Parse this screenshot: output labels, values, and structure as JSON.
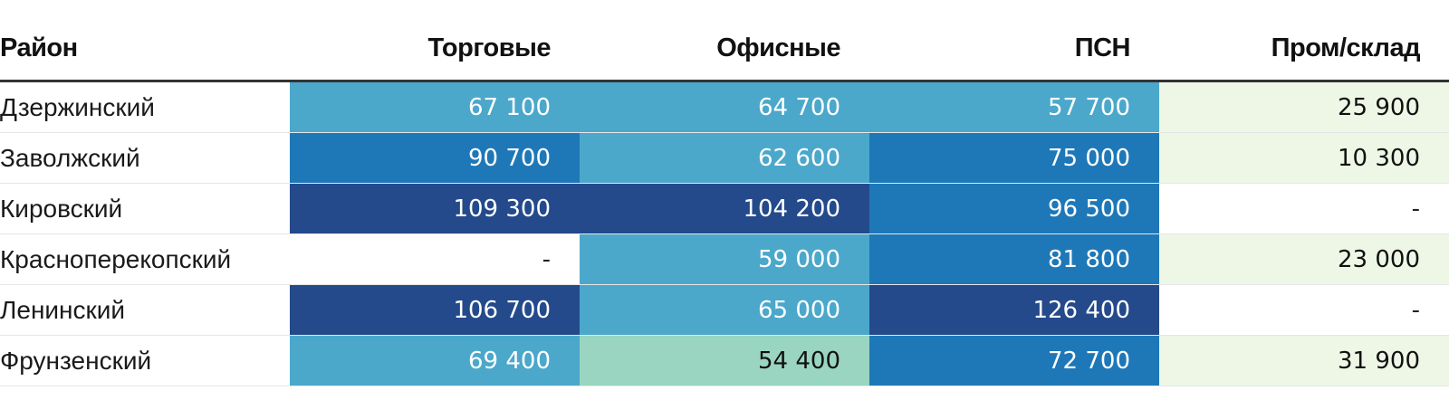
{
  "chart_data": {
    "type": "table",
    "columns": [
      "Район",
      "Торговые",
      "Офисные",
      "ПСН",
      "Пром/склад"
    ],
    "rows": [
      {
        "district": "Дзержинский",
        "values": [
          "67 100",
          "64 700",
          "57 700",
          "25 900"
        ],
        "numeric": [
          67100,
          64700,
          57700,
          25900
        ]
      },
      {
        "district": "Заволжский",
        "values": [
          "90 700",
          "62 600",
          "75 000",
          "10 300"
        ],
        "numeric": [
          90700,
          62600,
          75000,
          10300
        ]
      },
      {
        "district": "Кировский",
        "values": [
          "109 300",
          "104 200",
          "96 500",
          "-"
        ],
        "numeric": [
          109300,
          104200,
          96500,
          null
        ]
      },
      {
        "district": "Красноперекопский",
        "values": [
          "-",
          "59 000",
          "81 800",
          "23 000"
        ],
        "numeric": [
          null,
          59000,
          81800,
          23000
        ]
      },
      {
        "district": "Ленинский",
        "values": [
          "106 700",
          "65 000",
          "126 400",
          "-"
        ],
        "numeric": [
          106700,
          65000,
          126400,
          null
        ]
      },
      {
        "district": "Фрунзенский",
        "values": [
          "69 400",
          "54 400",
          "72 700",
          "31 900"
        ],
        "numeric": [
          69400,
          54400,
          72700,
          31900
        ]
      }
    ],
    "color_scale": [
      {
        "max": 40000,
        "color": "#eef7e6",
        "text_color": "#111111"
      },
      {
        "max": 55000,
        "color": "#99d5c0",
        "text_color": "#111111"
      },
      {
        "max": 70000,
        "color": "#4ba8cb",
        "text_color": "#ffffff"
      },
      {
        "max": 100000,
        "color": "#1e78b8",
        "text_color": "#ffffff"
      },
      {
        "max": 1000000,
        "color": "#244a8c",
        "text_color": "#ffffff"
      }
    ],
    "empty_color": "#ffffff",
    "empty_text_color": "#222222"
  }
}
